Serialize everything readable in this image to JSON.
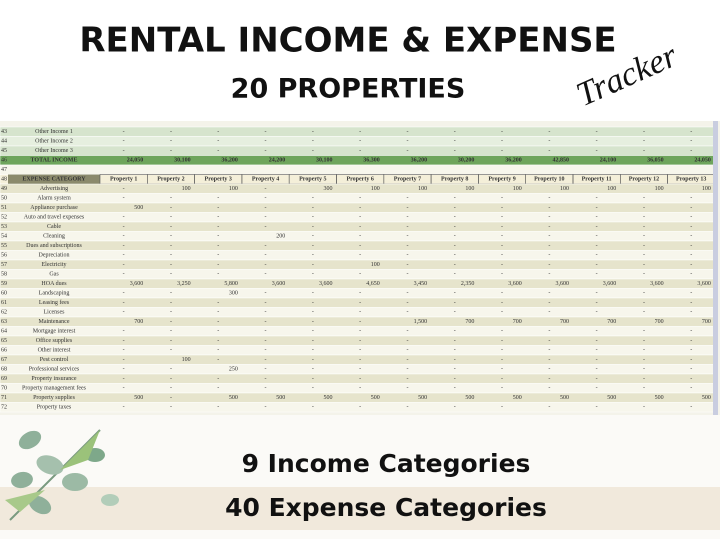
{
  "header": {
    "title": "RENTAL INCOME & EXPENSE",
    "subtitle": "20 PROPERTIES",
    "tag": "Tracker"
  },
  "sheet": {
    "header": {
      "num": "48",
      "label": "EXPENSE CATEGORY",
      "columns": [
        "Property 1",
        "Property 2",
        "Property 3",
        "Property 4",
        "Property 5",
        "Property 6",
        "Property 7",
        "Property 8",
        "Property 9",
        "Property 10",
        "Property 11",
        "Property 12",
        "Property 13"
      ]
    },
    "rows": [
      {
        "num": "43",
        "label": "Other Income 1",
        "kind": "income",
        "cells": [
          "-",
          "-",
          "-",
          "-",
          "-",
          "-",
          "-",
          "-",
          "-",
          "-",
          "-",
          "-",
          "-"
        ]
      },
      {
        "num": "44",
        "label": "Other Income 2",
        "kind": "income",
        "cells": [
          "-",
          "-",
          "-",
          "-",
          "-",
          "-",
          "-",
          "-",
          "-",
          "-",
          "-",
          "-",
          "-"
        ]
      },
      {
        "num": "45",
        "label": "Other Income 3",
        "kind": "income",
        "cells": [
          "-",
          "-",
          "-",
          "-",
          "-",
          "-",
          "-",
          "-",
          "-",
          "-",
          "-",
          "-",
          "-"
        ]
      },
      {
        "num": "46",
        "label": "TOTAL INCOME",
        "kind": "total",
        "cells": [
          "24,050",
          "30,100",
          "36,200",
          "24,200",
          "30,100",
          "36,300",
          "36,200",
          "30,200",
          "36,200",
          "42,850",
          "24,100",
          "36,050",
          "24,050"
        ]
      },
      {
        "num": "47",
        "kind": "blank"
      },
      {
        "num": "49",
        "label": "Advertising",
        "cells": [
          "-",
          "100",
          "100",
          "-",
          "300",
          "100",
          "100",
          "100",
          "100",
          "100",
          "100",
          "100",
          "100"
        ]
      },
      {
        "num": "50",
        "label": "Alarm system",
        "cells": [
          "-",
          "-",
          "-",
          "-",
          "-",
          "-",
          "-",
          "-",
          "-",
          "-",
          "-",
          "-",
          "-"
        ]
      },
      {
        "num": "51",
        "label": "Appliance purchase",
        "cells": [
          "500",
          "-",
          "-",
          "-",
          "-",
          "-",
          "-",
          "-",
          "-",
          "-",
          "-",
          "-",
          "-"
        ]
      },
      {
        "num": "52",
        "label": "Auto and travel expenses",
        "cells": [
          "-",
          "-",
          "-",
          "-",
          "-",
          "-",
          "-",
          "-",
          "-",
          "-",
          "-",
          "-",
          "-"
        ]
      },
      {
        "num": "53",
        "label": "Cable",
        "cells": [
          "-",
          "-",
          "-",
          "-",
          "-",
          "-",
          "-",
          "-",
          "-",
          "-",
          "-",
          "-",
          "-"
        ]
      },
      {
        "num": "54",
        "label": "Cleaning",
        "cells": [
          "-",
          "-",
          "-",
          "200",
          "-",
          "-",
          "-",
          "-",
          "-",
          "-",
          "-",
          "-",
          "-"
        ]
      },
      {
        "num": "55",
        "label": "Dues and subscriptions",
        "cells": [
          "-",
          "-",
          "-",
          "-",
          "-",
          "-",
          "-",
          "-",
          "-",
          "-",
          "-",
          "-",
          "-"
        ]
      },
      {
        "num": "56",
        "label": "Depreciation",
        "cells": [
          "-",
          "-",
          "-",
          "-",
          "-",
          "-",
          "-",
          "-",
          "-",
          "-",
          "-",
          "-",
          "-"
        ]
      },
      {
        "num": "57",
        "label": "Electricity",
        "cells": [
          "-",
          "-",
          "-",
          "-",
          "-",
          "100",
          "-",
          "-",
          "-",
          "-",
          "-",
          "-",
          "-"
        ]
      },
      {
        "num": "58",
        "label": "Gas",
        "cells": [
          "-",
          "-",
          "-",
          "-",
          "-",
          "-",
          "-",
          "-",
          "-",
          "-",
          "-",
          "-",
          "-"
        ]
      },
      {
        "num": "59",
        "label": "HOA dues",
        "cells": [
          "3,600",
          "3,250",
          "5,800",
          "3,600",
          "3,600",
          "4,650",
          "3,450",
          "2,350",
          "3,600",
          "3,600",
          "3,600",
          "3,600",
          "3,600"
        ]
      },
      {
        "num": "60",
        "label": "Landscaping",
        "cells": [
          "-",
          "-",
          "300",
          "-",
          "-",
          "-",
          "-",
          "-",
          "-",
          "-",
          "-",
          "-",
          "-"
        ]
      },
      {
        "num": "61",
        "label": "Leasing fees",
        "cells": [
          "-",
          "-",
          "-",
          "-",
          "-",
          "-",
          "-",
          "-",
          "-",
          "-",
          "-",
          "-",
          "-"
        ]
      },
      {
        "num": "62",
        "label": "Licenses",
        "cells": [
          "-",
          "-",
          "-",
          "-",
          "-",
          "-",
          "-",
          "-",
          "-",
          "-",
          "-",
          "-",
          "-"
        ]
      },
      {
        "num": "63",
        "label": "Maintenance",
        "cells": [
          "700",
          "-",
          "-",
          "-",
          "-",
          "-",
          "1,500",
          "700",
          "700",
          "700",
          "700",
          "700",
          "700"
        ]
      },
      {
        "num": "64",
        "label": "Mortgage interest",
        "cells": [
          "-",
          "-",
          "-",
          "-",
          "-",
          "-",
          "-",
          "-",
          "-",
          "-",
          "-",
          "-",
          "-"
        ]
      },
      {
        "num": "65",
        "label": "Office supplies",
        "cells": [
          "-",
          "-",
          "-",
          "-",
          "-",
          "-",
          "-",
          "-",
          "-",
          "-",
          "-",
          "-",
          "-"
        ]
      },
      {
        "num": "66",
        "label": "Other interest",
        "cells": [
          "-",
          "-",
          "-",
          "-",
          "-",
          "-",
          "-",
          "-",
          "-",
          "-",
          "-",
          "-",
          "-"
        ]
      },
      {
        "num": "67",
        "label": "Pest control",
        "cells": [
          "-",
          "100",
          "-",
          "-",
          "-",
          "-",
          "-",
          "-",
          "-",
          "-",
          "-",
          "-",
          "-"
        ]
      },
      {
        "num": "68",
        "label": "Professional services",
        "cells": [
          "-",
          "-",
          "250",
          "-",
          "-",
          "-",
          "-",
          "-",
          "-",
          "-",
          "-",
          "-",
          "-"
        ]
      },
      {
        "num": "69",
        "label": "Property insurance",
        "cells": [
          "-",
          "-",
          "-",
          "-",
          "-",
          "-",
          "-",
          "-",
          "-",
          "-",
          "-",
          "-",
          "-"
        ]
      },
      {
        "num": "70",
        "label": "Property management fees",
        "cells": [
          "-",
          "-",
          "-",
          "-",
          "-",
          "-",
          "-",
          "-",
          "-",
          "-",
          "-",
          "-",
          "-"
        ]
      },
      {
        "num": "71",
        "label": "Property supplies",
        "cells": [
          "500",
          "-",
          "500",
          "500",
          "500",
          "500",
          "500",
          "500",
          "500",
          "500",
          "500",
          "500",
          "500"
        ]
      },
      {
        "num": "72",
        "label": "Property taxes",
        "cells": [
          "-",
          "-",
          "-",
          "-",
          "-",
          "-",
          "-",
          "-",
          "-",
          "-",
          "-",
          "-",
          "-"
        ]
      }
    ]
  },
  "footer": {
    "line1": "9 Income Categories",
    "line2": "40 Expense Categories"
  }
}
